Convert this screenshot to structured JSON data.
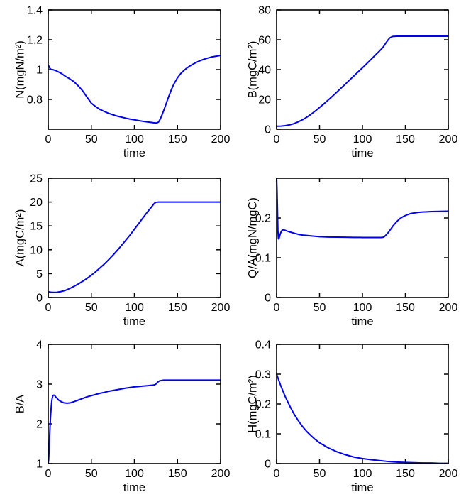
{
  "figure": {
    "background": "#ffffff",
    "line_color": "#0000ee",
    "axis_color": "#000000",
    "xlabel_all": "time"
  },
  "chart_data": [
    {
      "type": "line",
      "title": "",
      "xlabel": "time",
      "ylabel": "N(mgN/m²)",
      "xlim": [
        0,
        200
      ],
      "ylim": [
        0.6,
        1.4
      ],
      "grid": false,
      "legend": null,
      "xticks": [
        {
          "v": 0,
          "label": "0"
        },
        {
          "v": 50,
          "label": "50"
        },
        {
          "v": 100,
          "label": "100"
        },
        {
          "v": 150,
          "label": "150"
        },
        {
          "v": 200,
          "label": "200"
        }
      ],
      "yticks": [
        {
          "v": 0.8,
          "label": "0.8"
        },
        {
          "v": 1,
          "label": "1"
        },
        {
          "v": 1.2,
          "label": "1.2"
        },
        {
          "v": 1.4,
          "label": "1.4"
        }
      ],
      "series": [
        {
          "name": "N",
          "color": "#0000ee",
          "x": [
            0,
            1,
            2,
            3,
            5,
            8,
            10,
            15,
            20,
            25,
            30,
            35,
            40,
            45,
            50,
            55,
            60,
            65,
            70,
            75,
            80,
            85,
            90,
            95,
            100,
            105,
            110,
            115,
            120,
            124,
            126,
            128,
            130,
            132,
            134,
            136,
            138,
            140,
            143,
            146,
            150,
            154,
            158,
            162,
            166,
            170,
            175,
            180,
            185,
            190,
            195,
            200
          ],
          "y": [
            1.03,
            1.02,
            1.008,
            1.002,
            1.0,
            0.995,
            0.99,
            0.975,
            0.955,
            0.938,
            0.918,
            0.89,
            0.857,
            0.815,
            0.775,
            0.752,
            0.733,
            0.719,
            0.707,
            0.697,
            0.688,
            0.681,
            0.674,
            0.668,
            0.663,
            0.658,
            0.653,
            0.649,
            0.645,
            0.642,
            0.642,
            0.648,
            0.668,
            0.695,
            0.725,
            0.757,
            0.79,
            0.822,
            0.867,
            0.905,
            0.945,
            0.975,
            0.997,
            1.015,
            1.03,
            1.043,
            1.057,
            1.068,
            1.077,
            1.085,
            1.09,
            1.095
          ]
        }
      ]
    },
    {
      "type": "line",
      "title": "",
      "xlabel": "time",
      "ylabel": "B(mgC/m²)",
      "xlim": [
        0,
        200
      ],
      "ylim": [
        0,
        80
      ],
      "grid": false,
      "legend": null,
      "xticks": [
        {
          "v": 0,
          "label": "0"
        },
        {
          "v": 50,
          "label": "50"
        },
        {
          "v": 100,
          "label": "100"
        },
        {
          "v": 150,
          "label": "150"
        },
        {
          "v": 200,
          "label": "200"
        }
      ],
      "yticks": [
        {
          "v": 0,
          "label": "0"
        },
        {
          "v": 20,
          "label": "20"
        },
        {
          "v": 40,
          "label": "40"
        },
        {
          "v": 60,
          "label": "60"
        },
        {
          "v": 80,
          "label": "80"
        }
      ],
      "series": [
        {
          "name": "B",
          "color": "#0000ee",
          "x": [
            0,
            5,
            10,
            15,
            20,
            25,
            30,
            35,
            40,
            45,
            50,
            55,
            60,
            65,
            70,
            75,
            80,
            85,
            90,
            95,
            100,
            105,
            110,
            115,
            120,
            124,
            127,
            130,
            132,
            135,
            140,
            160,
            180,
            200
          ],
          "y": [
            2,
            2.1,
            2.4,
            2.9,
            3.7,
            4.9,
            6.3,
            8.0,
            10.0,
            12.2,
            14.6,
            17.0,
            19.5,
            22.1,
            24.8,
            27.5,
            30.2,
            33.0,
            35.7,
            38.5,
            41.2,
            44.0,
            46.8,
            49.7,
            52.5,
            55.0,
            57.6,
            60.0,
            61.3,
            62.2,
            62.4,
            62.4,
            62.4,
            62.4
          ]
        }
      ]
    },
    {
      "type": "line",
      "title": "",
      "xlabel": "time",
      "ylabel": "A(mgC/m²)",
      "xlim": [
        0,
        200
      ],
      "ylim": [
        0,
        25
      ],
      "grid": false,
      "legend": null,
      "xticks": [
        {
          "v": 0,
          "label": "0"
        },
        {
          "v": 50,
          "label": "50"
        },
        {
          "v": 100,
          "label": "100"
        },
        {
          "v": 150,
          "label": "150"
        },
        {
          "v": 200,
          "label": "200"
        }
      ],
      "yticks": [
        {
          "v": 0,
          "label": "0"
        },
        {
          "v": 5,
          "label": "5"
        },
        {
          "v": 10,
          "label": "10"
        },
        {
          "v": 15,
          "label": "15"
        },
        {
          "v": 20,
          "label": "20"
        },
        {
          "v": 25,
          "label": "25"
        }
      ],
      "series": [
        {
          "name": "A",
          "color": "#0000ee",
          "x": [
            0,
            3,
            6,
            10,
            15,
            20,
            25,
            30,
            35,
            40,
            45,
            50,
            55,
            60,
            65,
            70,
            75,
            80,
            85,
            90,
            95,
            100,
            105,
            110,
            115,
            120,
            123,
            125,
            128,
            140,
            170,
            200
          ],
          "y": [
            1.2,
            1.12,
            1.08,
            1.1,
            1.25,
            1.5,
            1.9,
            2.35,
            2.85,
            3.4,
            4.0,
            4.65,
            5.4,
            6.2,
            7.0,
            7.9,
            8.85,
            9.85,
            10.9,
            12.0,
            13.1,
            14.3,
            15.5,
            16.7,
            17.9,
            19.0,
            19.7,
            19.95,
            20.0,
            20.0,
            20.0,
            20.0
          ]
        }
      ]
    },
    {
      "type": "line",
      "title": "",
      "xlabel": "time",
      "ylabel": "Q/A(mgN/mgC)",
      "xlim": [
        0,
        200
      ],
      "ylim": [
        0,
        0.3
      ],
      "grid": false,
      "legend": null,
      "xticks": [
        {
          "v": 0,
          "label": "0"
        },
        {
          "v": 50,
          "label": "50"
        },
        {
          "v": 100,
          "label": "100"
        },
        {
          "v": 150,
          "label": "150"
        },
        {
          "v": 200,
          "label": "200"
        }
      ],
      "yticks": [
        {
          "v": 0,
          "label": "0"
        },
        {
          "v": 0.1,
          "label": "0.1"
        },
        {
          "v": 0.2,
          "label": "0.2"
        }
      ],
      "series": [
        {
          "name": "Q/A",
          "color": "#0000ee",
          "x": [
            0,
            0.5,
            1,
            1.5,
            2,
            2.5,
            3,
            4,
            5,
            6,
            7,
            8,
            10,
            12,
            15,
            20,
            25,
            30,
            35,
            40,
            50,
            60,
            70,
            80,
            90,
            100,
            110,
            120,
            123,
            125,
            127,
            130,
            133,
            136,
            140,
            144,
            148,
            152,
            156,
            160,
            165,
            170,
            175,
            180,
            190,
            200
          ],
          "y": [
            0.3,
            0.27,
            0.22,
            0.17,
            0.15,
            0.147,
            0.15,
            0.158,
            0.164,
            0.168,
            0.17,
            0.17,
            0.169,
            0.167,
            0.165,
            0.162,
            0.159,
            0.157,
            0.156,
            0.155,
            0.153,
            0.152,
            0.1517,
            0.1515,
            0.1512,
            0.151,
            0.151,
            0.151,
            0.151,
            0.152,
            0.156,
            0.163,
            0.172,
            0.181,
            0.191,
            0.199,
            0.204,
            0.208,
            0.211,
            0.2125,
            0.214,
            0.215,
            0.2155,
            0.216,
            0.2165,
            0.217
          ]
        }
      ]
    },
    {
      "type": "line",
      "title": "",
      "xlabel": "time",
      "ylabel": "B/A",
      "xlim": [
        0,
        200
      ],
      "ylim": [
        1,
        4
      ],
      "grid": false,
      "legend": null,
      "xticks": [
        {
          "v": 0,
          "label": "0"
        },
        {
          "v": 50,
          "label": "50"
        },
        {
          "v": 100,
          "label": "100"
        },
        {
          "v": 150,
          "label": "150"
        },
        {
          "v": 200,
          "label": "200"
        }
      ],
      "yticks": [
        {
          "v": 1,
          "label": "1"
        },
        {
          "v": 2,
          "label": "2"
        },
        {
          "v": 3,
          "label": "3"
        },
        {
          "v": 4,
          "label": "4"
        }
      ],
      "series": [
        {
          "name": "B/A",
          "color": "#0000ee",
          "x": [
            0,
            0.5,
            1,
            1.5,
            2,
            2.5,
            3,
            3.5,
            4,
            4.5,
            5,
            5.5,
            6,
            7,
            8,
            9,
            10,
            12,
            14,
            16,
            18,
            20,
            22,
            24,
            26,
            28,
            30,
            35,
            40,
            45,
            50,
            55,
            60,
            65,
            70,
            75,
            80,
            85,
            90,
            95,
            100,
            105,
            110,
            115,
            120,
            123,
            125,
            127,
            129,
            131,
            134,
            140,
            160,
            180,
            200
          ],
          "y": [
            1.0,
            1.1,
            1.35,
            1.62,
            1.88,
            2.1,
            2.28,
            2.43,
            2.55,
            2.63,
            2.68,
            2.71,
            2.72,
            2.72,
            2.7,
            2.67,
            2.65,
            2.6,
            2.57,
            2.55,
            2.53,
            2.525,
            2.52,
            2.525,
            2.53,
            2.545,
            2.56,
            2.6,
            2.64,
            2.68,
            2.71,
            2.74,
            2.77,
            2.79,
            2.82,
            2.84,
            2.86,
            2.88,
            2.9,
            2.915,
            2.93,
            2.94,
            2.95,
            2.96,
            2.97,
            2.98,
            3.0,
            3.05,
            3.08,
            3.09,
            3.1,
            3.1,
            3.1,
            3.1,
            3.1
          ]
        }
      ]
    },
    {
      "type": "line",
      "title": "",
      "xlabel": "time",
      "ylabel": "H(mgC/m²)",
      "xlim": [
        0,
        200
      ],
      "ylim": [
        0,
        0.4
      ],
      "grid": false,
      "legend": null,
      "xticks": [
        {
          "v": 0,
          "label": "0"
        },
        {
          "v": 50,
          "label": "50"
        },
        {
          "v": 100,
          "label": "100"
        },
        {
          "v": 150,
          "label": "150"
        },
        {
          "v": 200,
          "label": "200"
        }
      ],
      "yticks": [
        {
          "v": 0,
          "label": "0"
        },
        {
          "v": 0.1,
          "label": "0.1"
        },
        {
          "v": 0.2,
          "label": "0.2"
        },
        {
          "v": 0.3,
          "label": "0.3"
        },
        {
          "v": 0.4,
          "label": "0.4"
        }
      ],
      "series": [
        {
          "name": "H",
          "color": "#0000ee",
          "x": [
            0,
            5,
            10,
            15,
            20,
            25,
            30,
            35,
            40,
            45,
            50,
            60,
            70,
            80,
            90,
            100,
            110,
            120,
            130,
            140,
            150,
            160,
            170,
            180,
            190,
            200
          ],
          "y": [
            0.3,
            0.26,
            0.225,
            0.195,
            0.168,
            0.145,
            0.125,
            0.108,
            0.094,
            0.081,
            0.07,
            0.053,
            0.04,
            0.03,
            0.022,
            0.017,
            0.013,
            0.01,
            0.007,
            0.005,
            0.004,
            0.003,
            0.002,
            0.002,
            0.001,
            0.001
          ]
        }
      ]
    }
  ]
}
